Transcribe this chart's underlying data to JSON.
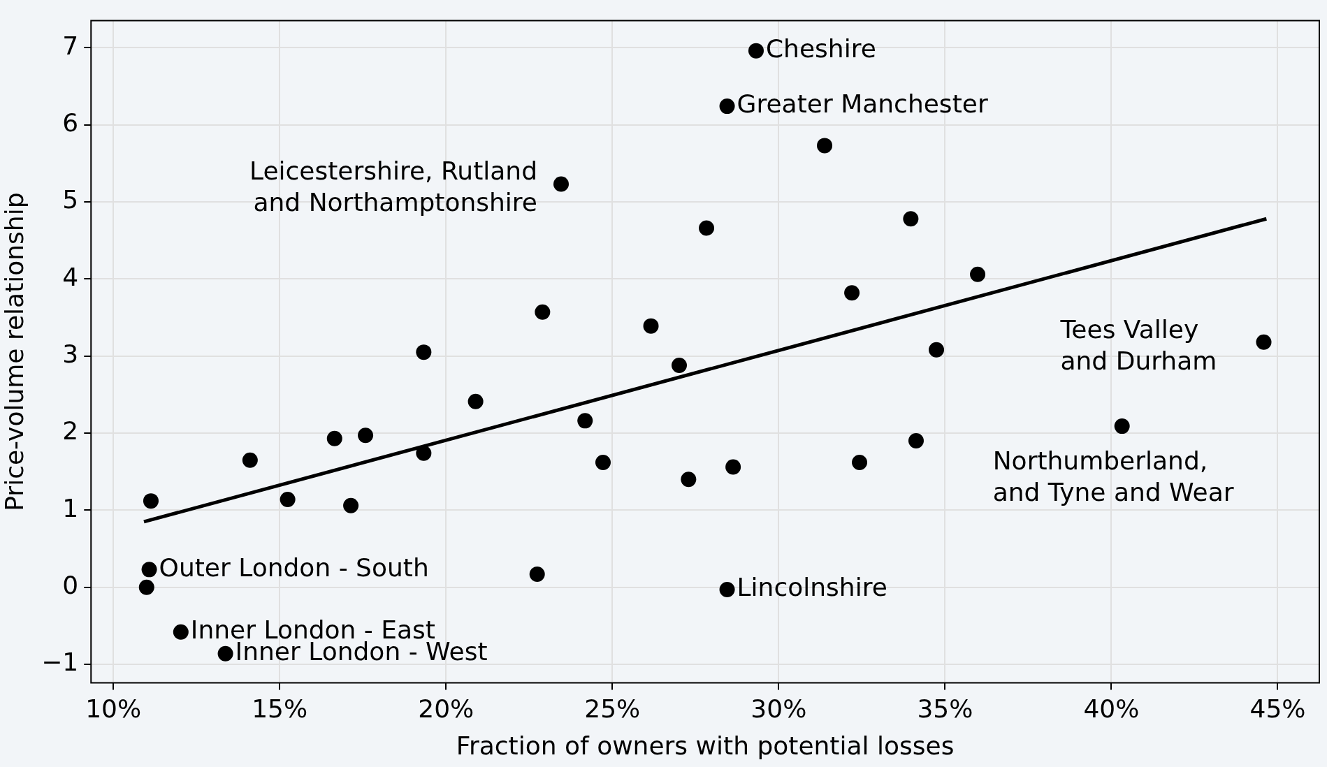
{
  "chart_data": {
    "type": "scatter",
    "xlabel": "Fraction of owners with potential losses",
    "ylabel": "Price-volume relationship",
    "xlim": [
      9.33,
      46.25
    ],
    "ylim": [
      -1.24,
      7.35
    ],
    "xticks": [
      {
        "value": 10,
        "label": "10%"
      },
      {
        "value": 15,
        "label": "15%"
      },
      {
        "value": 20,
        "label": "20%"
      },
      {
        "value": 25,
        "label": "25%"
      },
      {
        "value": 30,
        "label": "30%"
      },
      {
        "value": 35,
        "label": "35%"
      },
      {
        "value": 40,
        "label": "40%"
      },
      {
        "value": 45,
        "label": "45%"
      }
    ],
    "yticks": [
      -1,
      0,
      1,
      2,
      3,
      4,
      5,
      6,
      7
    ],
    "grid": true,
    "legend": false,
    "marker": "circle",
    "series": [
      {
        "color": "#000000",
        "x": [
          11.13,
          11.08,
          11.0,
          12.03,
          13.37,
          14.11,
          15.24,
          16.65,
          17.14,
          17.58,
          19.33,
          19.33,
          20.89,
          22.74,
          22.9,
          23.46,
          24.18,
          24.72,
          26.16,
          27.01,
          27.29,
          27.83,
          28.45,
          28.45,
          28.63,
          29.32,
          31.38,
          32.2,
          32.43,
          33.97,
          34.13,
          34.74,
          35.98,
          40.32,
          44.58
        ],
        "values": [
          1.12,
          0.23,
          0.0,
          -0.58,
          -0.86,
          1.65,
          1.14,
          1.93,
          1.06,
          1.97,
          3.05,
          1.74,
          2.41,
          0.17,
          3.57,
          5.23,
          2.16,
          1.62,
          3.39,
          2.88,
          1.4,
          4.66,
          -0.03,
          6.24,
          1.56,
          6.96,
          5.73,
          3.82,
          1.62,
          4.78,
          1.9,
          3.08,
          4.06,
          2.09,
          3.18
        ]
      },
      {
        "type": "line",
        "marker": "none",
        "color": "#000000",
        "x": [
          10.92,
          44.66
        ],
        "values": [
          0.85,
          4.78
        ]
      }
    ],
    "annotations": [
      {
        "text": "Cheshire",
        "x": 29.32,
        "y": 6.96
      },
      {
        "text": "Greater Manchester",
        "x": 28.45,
        "y": 6.24
      },
      {
        "text": "Leicestershire, Rutland\nand Northamptonshire",
        "x": 23.46,
        "y": 5.23
      },
      {
        "text": "Tees Valley\nand Durham",
        "x": 44.58,
        "y": 3.18
      },
      {
        "text": "Northumberland,\nand Tyne and Wear",
        "x": 40.32,
        "y": 2.09
      },
      {
        "text": "Outer London - South",
        "x": 11.08,
        "y": 0.23
      },
      {
        "text": "Lincolnshire",
        "x": 28.45,
        "y": -0.03
      },
      {
        "text": "Inner London - East",
        "x": 12.03,
        "y": -0.58
      },
      {
        "text": "Inner London - West",
        "x": 13.37,
        "y": -0.86
      }
    ]
  }
}
